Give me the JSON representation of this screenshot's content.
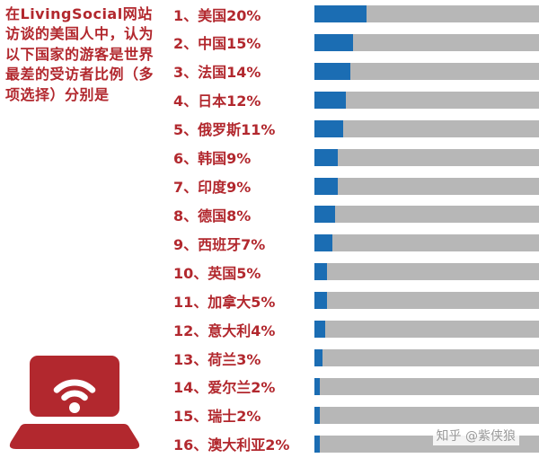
{
  "intro": {
    "text": "在LivingSocial网站访谈的美国人中，认为以下国家的游客是世界最差的受访者比例（多项选择）分别是"
  },
  "watermark": {
    "text": "知乎 @紫侠狼"
  },
  "colors": {
    "accent_red": "#b2282e",
    "bar_blue": "#1b6db3",
    "bar_gray": "#b7b7b7",
    "watermark_gray": "#9a9a9a"
  },
  "chart_data": {
    "type": "bar",
    "orientation": "horizontal",
    "title": "在LivingSocial网站访谈的美国人中，认为以下国家的游客是世界最差的受访者比例（多项选择）分别是",
    "categories": [
      "美国",
      "中国",
      "法国",
      "日本",
      "俄罗斯",
      "韩国",
      "印度",
      "德国",
      "西班牙",
      "英国",
      "加拿大",
      "意大利",
      "荷兰",
      "爱尔兰",
      "瑞士",
      "澳大利亚"
    ],
    "values": [
      20,
      15,
      14,
      12,
      11,
      9,
      9,
      8,
      7,
      5,
      5,
      4,
      3,
      2,
      2,
      2
    ],
    "labels": [
      "1、美国20%",
      "2、中国15%",
      "3、法国14%",
      "4、日本12%",
      "5、俄罗斯11%",
      "6、韩国9%",
      "7、印度9%",
      "8、德国8%",
      "9、西班牙7%",
      "10、英国5%",
      "11、加拿大5%",
      "12、意大利4%",
      "13、荷兰3%",
      "14、爱尔兰2%",
      "15、瑞士2%",
      "16、澳大利亚2%"
    ],
    "xlim": [
      0,
      100
    ],
    "bar_color": "#1b6db3",
    "track_color": "#b7b7b7",
    "grid": false,
    "legend": false
  }
}
